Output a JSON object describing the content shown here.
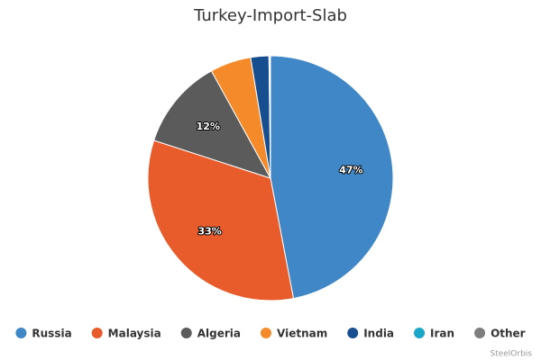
{
  "chart_data": {
    "type": "pie",
    "title": "Turkey-Import-Slab",
    "categories": [
      "Russia",
      "Malaysia",
      "Algeria",
      "Vietnam",
      "India",
      "Iran",
      "Other"
    ],
    "values": [
      47,
      33,
      12,
      5.4,
      2.4,
      0.1,
      0.1
    ],
    "value_labels": [
      "47%",
      "33%",
      "12%",
      null,
      null,
      null,
      null
    ],
    "colors": [
      "#3f87c7",
      "#e85c2b",
      "#5b5b5b",
      "#f58a2a",
      "#174e8f",
      "#19a7c9",
      "#7e7e7e"
    ],
    "legend": "bottom",
    "credit": "SteelOrbis"
  }
}
